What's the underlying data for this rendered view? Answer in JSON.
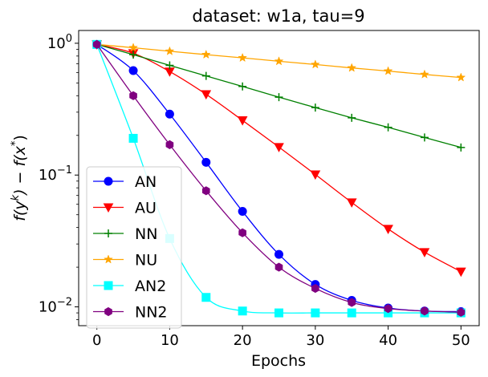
{
  "chart_data": {
    "type": "line",
    "title": "dataset: w1a, tau=9",
    "xlabel": "Epochs",
    "ylabel": "f(y^k) − f(x*)",
    "ylabel_parts": {
      "f1": "f(y",
      "sup_k": "k",
      "mid": ") − f(x",
      "sup_star": "*",
      "end": ")"
    },
    "yscale": "log",
    "xlim": [
      -2.5,
      52.5
    ],
    "ylim": [
      0.0072,
      1.25
    ],
    "xticks": [
      0,
      10,
      20,
      30,
      40,
      50
    ],
    "xtick_labels": [
      "0",
      "10",
      "20",
      "30",
      "40",
      "50"
    ],
    "yticks": [
      {
        "value": 0.01,
        "base": "10",
        "exp": "−2"
      },
      {
        "value": 0.1,
        "base": "10",
        "exp": "−1"
      },
      {
        "value": 1,
        "base": "10",
        "exp": "0"
      }
    ],
    "legend_position": "lower-left",
    "x": [
      0,
      5,
      10,
      15,
      20,
      25,
      30,
      35,
      40,
      45,
      50
    ],
    "series": [
      {
        "name": "AN",
        "color": "#0000ff",
        "marker": "circle",
        "values": [
          0.98,
          0.62,
          0.29,
          0.125,
          0.053,
          0.025,
          0.0148,
          0.0112,
          0.0098,
          0.0093,
          0.0092
        ]
      },
      {
        "name": "AU",
        "color": "#ff0000",
        "marker": "triangle-down",
        "values": [
          0.98,
          0.84,
          0.61,
          0.41,
          0.26,
          0.163,
          0.101,
          0.062,
          0.039,
          0.026,
          0.0185
        ]
      },
      {
        "name": "NN",
        "color": "#008000",
        "marker": "plus",
        "values": [
          0.98,
          0.82,
          0.68,
          0.565,
          0.47,
          0.39,
          0.325,
          0.272,
          0.23,
          0.193,
          0.162
        ]
      },
      {
        "name": "NU",
        "color": "#ffa500",
        "marker": "star",
        "values": [
          0.98,
          0.925,
          0.87,
          0.82,
          0.775,
          0.73,
          0.69,
          0.65,
          0.615,
          0.58,
          0.55
        ]
      },
      {
        "name": "AN2",
        "color": "#00ffff",
        "marker": "square",
        "values": [
          0.98,
          0.19,
          0.033,
          0.0118,
          0.0093,
          0.009,
          0.009,
          0.009,
          0.009,
          0.009,
          0.009
        ]
      },
      {
        "name": "NN2",
        "color": "#800080",
        "marker": "hexagon",
        "values": [
          0.98,
          0.4,
          0.17,
          0.076,
          0.0365,
          0.02,
          0.0138,
          0.0108,
          0.0097,
          0.0093,
          0.0091
        ]
      }
    ]
  }
}
